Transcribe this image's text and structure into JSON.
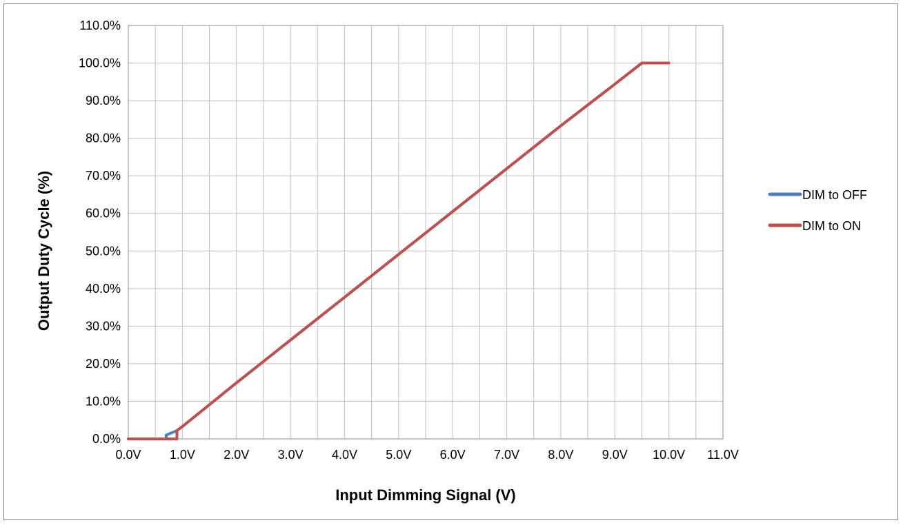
{
  "chart_data": {
    "type": "line",
    "xlabel": "Input Dimming Signal (V)",
    "ylabel": "Output Duty Cycle (%)",
    "xlim": [
      0,
      11
    ],
    "ylim": [
      0,
      110
    ],
    "x_ticks": [
      "0.0V",
      "1.0V",
      "2.0V",
      "3.0V",
      "4.0V",
      "5.0V",
      "6.0V",
      "7.0V",
      "8.0V",
      "9.0V",
      "10.0V",
      "11.0V"
    ],
    "y_ticks": [
      "0.0%",
      "10.0%",
      "20.0%",
      "30.0%",
      "40.0%",
      "50.0%",
      "60.0%",
      "70.0%",
      "80.0%",
      "90.0%",
      "100.0%",
      "110.0%"
    ],
    "grid": true,
    "legend_position": "right",
    "series": [
      {
        "name": "DIM to OFF",
        "color": "#4f81bd",
        "points": [
          [
            0,
            0
          ],
          [
            0.7,
            0
          ],
          [
            0.7,
            1.0
          ],
          [
            0.9,
            2.2
          ],
          [
            1.0,
            3.3
          ],
          [
            1.5,
            9.1
          ],
          [
            2.0,
            14.9
          ],
          [
            3.0,
            26.3
          ],
          [
            4.0,
            37.7
          ],
          [
            5.0,
            49.1
          ],
          [
            6.0,
            60.5
          ],
          [
            7.0,
            71.9
          ],
          [
            8.0,
            83.3
          ],
          [
            9.0,
            94.4
          ],
          [
            9.5,
            100
          ],
          [
            10.0,
            100
          ]
        ]
      },
      {
        "name": "DIM to ON",
        "color": "#c0504d",
        "points": [
          [
            0,
            0
          ],
          [
            0.9,
            0
          ],
          [
            0.9,
            2.2
          ],
          [
            1.0,
            3.3
          ],
          [
            1.5,
            9.1
          ],
          [
            2.0,
            14.9
          ],
          [
            3.0,
            26.3
          ],
          [
            4.0,
            37.7
          ],
          [
            5.0,
            49.1
          ],
          [
            6.0,
            60.5
          ],
          [
            7.0,
            71.9
          ],
          [
            8.0,
            83.3
          ],
          [
            9.0,
            94.4
          ],
          [
            9.5,
            100
          ],
          [
            10.0,
            100
          ]
        ]
      }
    ]
  }
}
